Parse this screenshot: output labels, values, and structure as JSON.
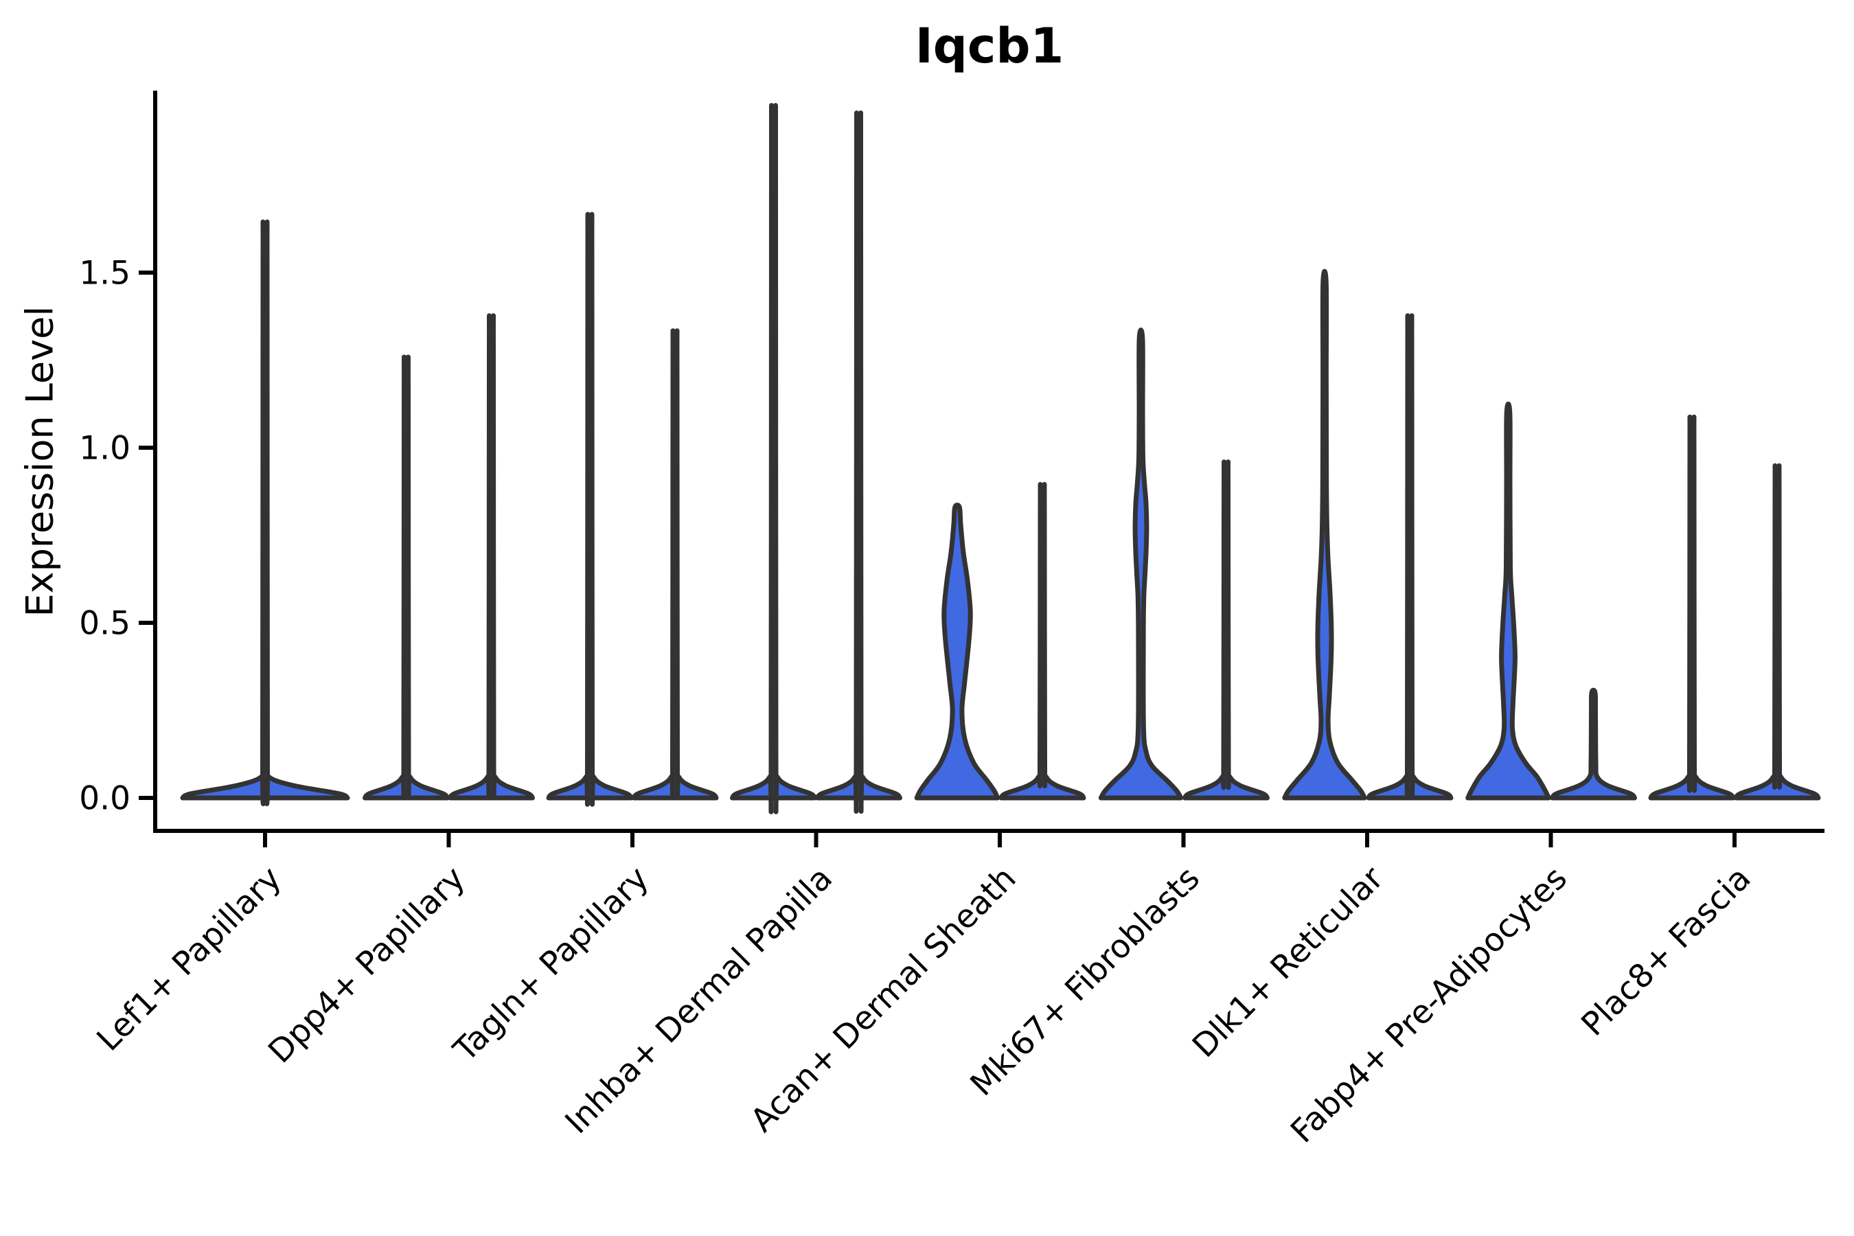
{
  "chart_data": {
    "type": "violin",
    "title": "Iqcb1",
    "xlabel": "",
    "ylabel": "Expression Level",
    "y_ticks": [
      0.0,
      0.5,
      1.0,
      1.5
    ],
    "y_range": [
      -0.09,
      2.02
    ],
    "grid": false,
    "legend": null,
    "background": "#ffffff",
    "axis_color": "#000000",
    "violin_fill": "#4169E1",
    "violin_edge": "#333333",
    "groups_per_category": 2,
    "categories": [
      "Lef1+ Papillary",
      "Dpp4+ Papillary",
      "Tagln+ Papillary",
      "Inhba+ Dermal Papilla",
      "Acan+ Dermal Sheath",
      "Mki67+ Fibroblasts",
      "Dlk1+ Reticular",
      "Fabp4+ Pre-Adipocytes",
      "Plac8+ Fascia"
    ],
    "violins": [
      {
        "category": "Lef1+ Papillary",
        "side": "center",
        "shape": "spike",
        "max": 1.58
      },
      {
        "category": "Dpp4+ Papillary",
        "side": "left",
        "shape": "spike",
        "max": 1.22
      },
      {
        "category": "Dpp4+ Papillary",
        "side": "right",
        "shape": "spike",
        "max": 1.33
      },
      {
        "category": "Tagln+ Papillary",
        "side": "left",
        "shape": "spike",
        "max": 1.6
      },
      {
        "category": "Tagln+ Papillary",
        "side": "right",
        "shape": "spike",
        "max": 1.29
      },
      {
        "category": "Inhba+ Dermal Papilla",
        "side": "left",
        "shape": "spike",
        "max": 1.89
      },
      {
        "category": "Inhba+ Dermal Papilla",
        "side": "right",
        "shape": "spike",
        "max": 1.87
      },
      {
        "category": "Acan+ Dermal Sheath",
        "side": "left",
        "shape": "density",
        "max": 0.83,
        "profile": [
          [
            0,
            0.98
          ],
          [
            0.02,
            0.9
          ],
          [
            0.05,
            0.72
          ],
          [
            0.1,
            0.4
          ],
          [
            0.17,
            0.18
          ],
          [
            0.25,
            0.115
          ],
          [
            0.33,
            0.18
          ],
          [
            0.45,
            0.285
          ],
          [
            0.53,
            0.32
          ],
          [
            0.62,
            0.25
          ],
          [
            0.7,
            0.15
          ],
          [
            0.78,
            0.085
          ],
          [
            0.83,
            0.055
          ]
        ]
      },
      {
        "category": "Acan+ Dermal Sheath",
        "side": "right",
        "shape": "spike",
        "max": 0.88
      },
      {
        "category": "Mki67+ Fibroblasts",
        "side": "left",
        "shape": "density",
        "max": 1.31,
        "profile": [
          [
            0,
            0.97
          ],
          [
            0.02,
            0.87
          ],
          [
            0.05,
            0.63
          ],
          [
            0.09,
            0.28
          ],
          [
            0.13,
            0.13
          ],
          [
            0.2,
            0.065
          ],
          [
            0.45,
            0.06
          ],
          [
            0.57,
            0.07
          ],
          [
            0.64,
            0.1
          ],
          [
            0.7,
            0.125
          ],
          [
            0.77,
            0.14
          ],
          [
            0.84,
            0.125
          ],
          [
            0.9,
            0.085
          ],
          [
            0.97,
            0.05
          ],
          [
            1.1,
            0.042
          ],
          [
            1.31,
            0.04
          ]
        ]
      },
      {
        "category": "Mki67+ Fibroblasts",
        "side": "right",
        "shape": "spike",
        "max": 0.94
      },
      {
        "category": "Dlk1+ Reticular",
        "side": "left",
        "shape": "density",
        "max": 1.47,
        "profile": [
          [
            0,
            0.97
          ],
          [
            0.02,
            0.88
          ],
          [
            0.05,
            0.67
          ],
          [
            0.1,
            0.32
          ],
          [
            0.16,
            0.13
          ],
          [
            0.22,
            0.085
          ],
          [
            0.29,
            0.115
          ],
          [
            0.4,
            0.16
          ],
          [
            0.48,
            0.165
          ],
          [
            0.58,
            0.135
          ],
          [
            0.68,
            0.085
          ],
          [
            0.77,
            0.058
          ],
          [
            0.9,
            0.045
          ],
          [
            1.2,
            0.04
          ],
          [
            1.47,
            0.038
          ]
        ]
      },
      {
        "category": "Dlk1+ Reticular",
        "side": "right",
        "shape": "spike",
        "max": 1.33
      },
      {
        "category": "Fabp4+ Pre-Adipocytes",
        "side": "left",
        "shape": "density",
        "max": 1.1,
        "profile": [
          [
            0,
            0.98
          ],
          [
            0.02,
            0.9
          ],
          [
            0.06,
            0.7
          ],
          [
            0.1,
            0.42
          ],
          [
            0.15,
            0.18
          ],
          [
            0.2,
            0.1
          ],
          [
            0.27,
            0.115
          ],
          [
            0.35,
            0.15
          ],
          [
            0.41,
            0.165
          ],
          [
            0.5,
            0.13
          ],
          [
            0.58,
            0.085
          ],
          [
            0.66,
            0.05
          ],
          [
            0.9,
            0.042
          ],
          [
            1.1,
            0.038
          ]
        ]
      },
      {
        "category": "Fabp4+ Pre-Adipocytes",
        "side": "right",
        "shape": "spike",
        "max": 0.3
      },
      {
        "category": "Plac8+ Fascia",
        "side": "left",
        "shape": "spike",
        "max": 1.06
      },
      {
        "category": "Plac8+ Fascia",
        "side": "right",
        "shape": "spike",
        "max": 0.93
      }
    ]
  }
}
